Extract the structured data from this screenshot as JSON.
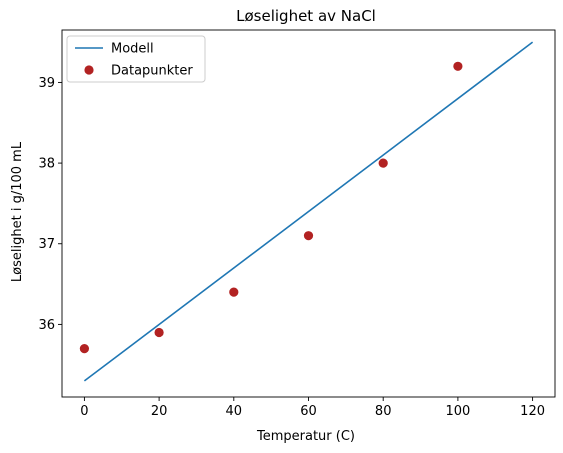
{
  "chart_data": {
    "type": "line",
    "title": "Løselighet av NaCl",
    "xlabel": "Temperatur (C)",
    "ylabel": "Løselighet i g/100 mL",
    "xlim": [
      -6,
      126
    ],
    "ylim": [
      35.1,
      39.65
    ],
    "xticks": [
      0,
      20,
      40,
      60,
      80,
      100,
      120
    ],
    "yticks": [
      36,
      37,
      38,
      39
    ],
    "grid": false,
    "legend_position": "top-left",
    "series": [
      {
        "name": "Modell",
        "kind": "line",
        "color": "#1f77b4",
        "x": [
          0,
          120
        ],
        "y": [
          35.3,
          39.5
        ]
      },
      {
        "name": "Datapunkter",
        "kind": "scatter",
        "color": "#b22222",
        "x": [
          0,
          20,
          40,
          60,
          80,
          100
        ],
        "y": [
          35.7,
          35.9,
          36.4,
          37.1,
          38.0,
          39.2
        ]
      }
    ]
  }
}
